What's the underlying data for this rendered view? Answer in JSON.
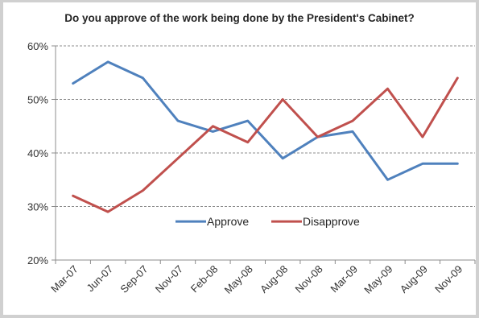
{
  "chart_data": {
    "type": "line",
    "title": "Do you approve of the work being done by the President's Cabinet?",
    "categories": [
      "Mar-07",
      "Jun-07",
      "Sep-07",
      "Nov-07",
      "Feb-08",
      "May-08",
      "Aug-08",
      "Nov-08",
      "Mar-09",
      "May-09",
      "Aug-09",
      "Nov-09"
    ],
    "series": [
      {
        "name": "Approve",
        "color": "#4f81bd",
        "values": [
          53,
          57,
          54,
          46,
          44,
          46,
          39,
          43,
          44,
          35,
          38,
          38
        ]
      },
      {
        "name": "Disapprove",
        "color": "#c0504d",
        "values": [
          32,
          29,
          33,
          39,
          45,
          42,
          50,
          43,
          46,
          52,
          43,
          54
        ]
      }
    ],
    "y_ticks": [
      "20%",
      "30%",
      "40%",
      "50%",
      "60%"
    ],
    "ylim": [
      20,
      60
    ],
    "ylabel": "",
    "xlabel": "",
    "gridlines": "dashed-horizontal",
    "legend_position": "inside-bottom-center"
  }
}
